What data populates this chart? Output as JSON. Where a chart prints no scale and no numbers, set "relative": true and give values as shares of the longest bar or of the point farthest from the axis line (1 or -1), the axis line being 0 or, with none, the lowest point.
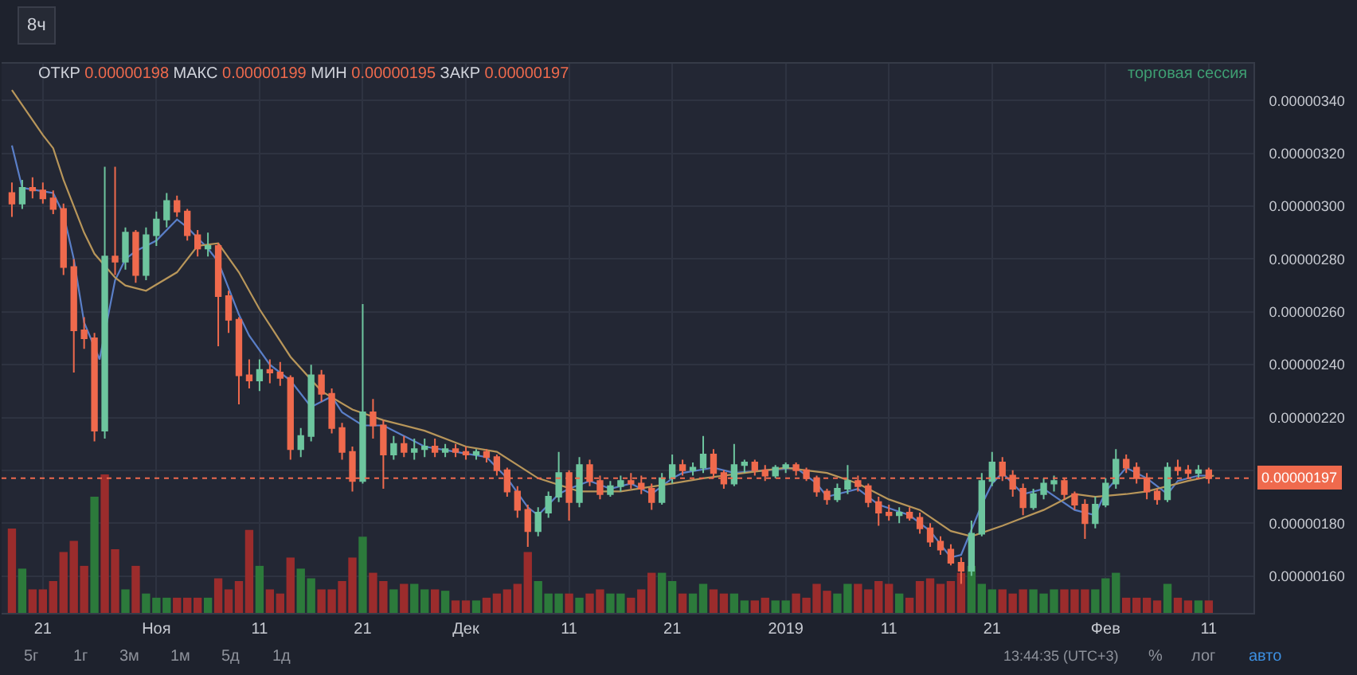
{
  "chart_data": [
    {
      "type": "candlestick",
      "x": [
        "2018-10-18",
        "2018-10-19",
        "2018-10-20",
        "2018-10-21",
        "2018-10-22",
        "2018-10-23",
        "2018-10-24",
        "2018-10-25",
        "2018-10-26",
        "2018-10-27",
        "2018-10-28",
        "2018-10-29",
        "2018-10-30",
        "2018-10-31",
        "2018-11-01",
        "2018-11-02",
        "2018-11-03",
        "2018-11-04",
        "2018-11-05",
        "2018-11-06",
        "2018-11-07",
        "2018-11-08",
        "2018-11-09",
        "2018-11-10",
        "2018-11-11",
        "2018-11-12",
        "2018-11-13",
        "2018-11-14",
        "2018-11-15",
        "2018-11-16",
        "2018-11-17",
        "2018-11-18",
        "2018-11-19",
        "2018-11-20",
        "2018-11-21",
        "2018-11-22",
        "2018-11-23",
        "2018-11-24",
        "2018-11-25",
        "2018-11-26",
        "2018-11-27",
        "2018-11-28",
        "2018-11-29",
        "2018-11-30",
        "2018-12-01",
        "2018-12-02",
        "2018-12-03",
        "2018-12-04",
        "2018-12-05",
        "2018-12-06",
        "2018-12-07",
        "2018-12-08",
        "2018-12-09",
        "2018-12-10",
        "2018-12-11",
        "2018-12-12",
        "2018-12-13",
        "2018-12-14",
        "2018-12-15",
        "2018-12-16",
        "2018-12-17",
        "2018-12-18",
        "2018-12-19",
        "2018-12-20",
        "2018-12-21",
        "2018-12-22",
        "2018-12-23",
        "2018-12-24",
        "2018-12-25",
        "2018-12-26",
        "2018-12-27",
        "2018-12-28",
        "2018-12-29",
        "2018-12-30",
        "2018-12-31",
        "2019-01-01",
        "2019-01-02",
        "2019-01-03",
        "2019-01-04",
        "2019-01-05",
        "2019-01-06",
        "2019-01-07",
        "2019-01-08",
        "2019-01-09",
        "2019-01-10",
        "2019-01-11",
        "2019-01-12",
        "2019-01-13",
        "2019-01-14",
        "2019-01-15",
        "2019-01-16",
        "2019-01-17",
        "2019-01-18",
        "2019-01-19",
        "2019-01-20",
        "2019-01-21",
        "2019-01-22",
        "2019-01-23",
        "2019-01-24",
        "2019-01-25",
        "2019-01-26",
        "2019-01-27",
        "2019-01-28",
        "2019-01-29",
        "2019-01-30",
        "2019-01-31",
        "2019-02-01",
        "2019-02-02",
        "2019-02-03",
        "2019-02-04",
        "2019-02-05",
        "2019-02-06",
        "2019-02-07",
        "2019-02-08",
        "2019-02-09",
        "2019-02-10",
        "2019-02-11"
      ],
      "ohlc": [
        [
          3.05e-06,
          3.09e-06,
          2.96e-06,
          3.01e-06
        ],
        [
          3.01e-06,
          3.1e-06,
          2.99e-06,
          3.07e-06
        ],
        [
          3.07e-06,
          3.11e-06,
          3.03e-06,
          3.06e-06
        ],
        [
          3.06e-06,
          3.09e-06,
          3.01e-06,
          3.03e-06
        ],
        [
          3.03e-06,
          3.06e-06,
          2.97e-06,
          2.99e-06
        ],
        [
          2.99e-06,
          3.01e-06,
          2.74e-06,
          2.77e-06
        ],
        [
          2.77e-06,
          2.8e-06,
          2.37e-06,
          2.53e-06
        ],
        [
          2.53e-06,
          2.58e-06,
          2.46e-06,
          2.5e-06
        ],
        [
          2.5e-06,
          2.52e-06,
          2.11e-06,
          2.15e-06
        ],
        [
          2.15e-06,
          3.15e-06,
          2.12e-06,
          2.81e-06
        ],
        [
          2.81e-06,
          3.15e-06,
          2.74e-06,
          2.79e-06
        ],
        [
          2.79e-06,
          2.92e-06,
          2.76e-06,
          2.9e-06
        ],
        [
          2.9e-06,
          2.91e-06,
          2.71e-06,
          2.74e-06
        ],
        [
          2.74e-06,
          2.92e-06,
          2.72e-06,
          2.89e-06
        ],
        [
          2.89e-06,
          2.98e-06,
          2.85e-06,
          2.95e-06
        ],
        [
          2.95e-06,
          3.05e-06,
          2.92e-06,
          3.02e-06
        ],
        [
          3.02e-06,
          3.04e-06,
          2.96e-06,
          2.98e-06
        ],
        [
          2.98e-06,
          2.99e-06,
          2.87e-06,
          2.89e-06
        ],
        [
          2.89e-06,
          2.91e-06,
          2.81e-06,
          2.84e-06
        ],
        [
          2.84e-06,
          2.9e-06,
          2.81e-06,
          2.85e-06
        ],
        [
          2.85e-06,
          2.86e-06,
          2.47e-06,
          2.66e-06
        ],
        [
          2.66e-06,
          2.68e-06,
          2.52e-06,
          2.57e-06
        ],
        [
          2.57e-06,
          2.58e-06,
          2.25e-06,
          2.36e-06
        ],
        [
          2.36e-06,
          2.42e-06,
          2.31e-06,
          2.34e-06
        ],
        [
          2.34e-06,
          2.42e-06,
          2.3e-06,
          2.38e-06
        ],
        [
          2.38e-06,
          2.42e-06,
          2.33e-06,
          2.37e-06
        ],
        [
          2.37e-06,
          2.41e-06,
          2.32e-06,
          2.35e-06
        ],
        [
          2.35e-06,
          2.36e-06,
          2.04e-06,
          2.08e-06
        ],
        [
          2.08e-06,
          2.16e-06,
          2.05e-06,
          2.13e-06
        ],
        [
          2.13e-06,
          2.4e-06,
          2.11e-06,
          2.36e-06
        ],
        [
          2.36e-06,
          2.38e-06,
          2.26e-06,
          2.29e-06
        ],
        [
          2.29e-06,
          2.31e-06,
          2.14e-06,
          2.16e-06
        ],
        [
          2.16e-06,
          2.18e-06,
          2.04e-06,
          2.07e-06
        ],
        [
          2.07e-06,
          2.09e-06,
          1.92e-06,
          1.96e-06
        ],
        [
          1.96e-06,
          2.63e-06,
          1.95e-06,
          2.22e-06
        ],
        [
          2.22e-06,
          2.27e-06,
          2.12e-06,
          2.17e-06
        ],
        [
          2.17e-06,
          2.19e-06,
          1.93e-06,
          2.06e-06
        ],
        [
          2.06e-06,
          2.13e-06,
          2.04e-06,
          2.1e-06
        ],
        [
          2.1e-06,
          2.13e-06,
          2.05e-06,
          2.07e-06
        ],
        [
          2.07e-06,
          2.12e-06,
          2.04e-06,
          2.08e-06
        ],
        [
          2.08e-06,
          2.12e-06,
          2.05e-06,
          2.09e-06
        ],
        [
          2.09e-06,
          2.12e-06,
          2.05e-06,
          2.07e-06
        ],
        [
          2.07e-06,
          2.1e-06,
          2.05e-06,
          2.08e-06
        ],
        [
          2.08e-06,
          2.1e-06,
          2.05e-06,
          2.07e-06
        ],
        [
          2.07e-06,
          2.09e-06,
          2.04e-06,
          2.06e-06
        ],
        [
          2.06e-06,
          2.08e-06,
          2.04e-06,
          2.07e-06
        ],
        [
          2.07e-06,
          2.08e-06,
          2.03e-06,
          2.05e-06
        ],
        [
          2.05e-06,
          2.06e-06,
          1.98e-06,
          2e-06
        ],
        [
          2e-06,
          2.01e-06,
          1.9e-06,
          1.92e-06
        ],
        [
          1.92e-06,
          1.94e-06,
          1.82e-06,
          1.85e-06
        ],
        [
          1.85e-06,
          1.87e-06,
          1.71e-06,
          1.77e-06
        ],
        [
          1.77e-06,
          1.86e-06,
          1.75e-06,
          1.84e-06
        ],
        [
          1.84e-06,
          1.92e-06,
          1.82e-06,
          1.9e-06
        ],
        [
          1.9e-06,
          2.07e-06,
          1.88e-06,
          1.99e-06
        ],
        [
          1.99e-06,
          2e-06,
          1.81e-06,
          1.88e-06
        ],
        [
          1.88e-06,
          2.05e-06,
          1.86e-06,
          2.02e-06
        ],
        [
          2.02e-06,
          2.04e-06,
          1.94e-06,
          1.96e-06
        ],
        [
          1.96e-06,
          1.98e-06,
          1.89e-06,
          1.91e-06
        ],
        [
          1.91e-06,
          1.96e-06,
          1.9e-06,
          1.94e-06
        ],
        [
          1.94e-06,
          1.98e-06,
          1.92e-06,
          1.96e-06
        ],
        [
          1.96e-06,
          1.99e-06,
          1.93e-06,
          1.95e-06
        ],
        [
          1.95e-06,
          1.98e-06,
          1.91e-06,
          1.93e-06
        ],
        [
          1.93e-06,
          1.95e-06,
          1.85e-06,
          1.88e-06
        ],
        [
          1.88e-06,
          1.99e-06,
          1.87e-06,
          1.97e-06
        ],
        [
          1.97e-06,
          2.06e-06,
          1.95e-06,
          2.02e-06
        ],
        [
          2.02e-06,
          2.04e-06,
          1.98e-06,
          2e-06
        ],
        [
          2e-06,
          2.03e-06,
          1.98e-06,
          2.01e-06
        ],
        [
          2.01e-06,
          2.13e-06,
          1.99e-06,
          2.06e-06
        ],
        [
          2.06e-06,
          2.08e-06,
          1.97e-06,
          1.99e-06
        ],
        [
          1.99e-06,
          2e-06,
          1.93e-06,
          1.95e-06
        ],
        [
          1.95e-06,
          2.1e-06,
          1.94e-06,
          2.02e-06
        ],
        [
          2.02e-06,
          2.04e-06,
          1.99e-06,
          2.03e-06
        ],
        [
          2.03e-06,
          2.04e-06,
          1.98e-06,
          2e-06
        ],
        [
          2e-06,
          2.02e-06,
          1.96e-06,
          1.98e-06
        ],
        [
          1.98e-06,
          2.02e-06,
          1.97e-06,
          2.01e-06
        ],
        [
          2.01e-06,
          2.03e-06,
          1.99e-06,
          2.02e-06
        ],
        [
          2.02e-06,
          2.03e-06,
          1.98e-06,
          2e-06
        ],
        [
          2e-06,
          2.01e-06,
          1.96e-06,
          1.97e-06
        ],
        [
          1.97e-06,
          1.98e-06,
          1.9e-06,
          1.92e-06
        ],
        [
          1.92e-06,
          1.93e-06,
          1.87e-06,
          1.89e-06
        ],
        [
          1.89e-06,
          1.95e-06,
          1.88e-06,
          1.93e-06
        ],
        [
          1.93e-06,
          2.02e-06,
          1.91e-06,
          1.96e-06
        ],
        [
          1.96e-06,
          1.98e-06,
          1.92e-06,
          1.94e-06
        ],
        [
          1.94e-06,
          1.95e-06,
          1.86e-06,
          1.88e-06
        ],
        [
          1.88e-06,
          1.9e-06,
          1.79e-06,
          1.84e-06
        ],
        [
          1.84e-06,
          1.87e-06,
          1.81e-06,
          1.83e-06
        ],
        [
          1.83e-06,
          1.86e-06,
          1.8e-06,
          1.84e-06
        ],
        [
          1.84e-06,
          1.86e-06,
          1.81e-06,
          1.82e-06
        ],
        [
          1.82e-06,
          1.84e-06,
          1.76e-06,
          1.78e-06
        ],
        [
          1.78e-06,
          1.8e-06,
          1.71e-06,
          1.73e-06
        ],
        [
          1.73e-06,
          1.75e-06,
          1.68e-06,
          1.7e-06
        ],
        [
          1.7e-06,
          1.72e-06,
          1.64e-06,
          1.65e-06
        ],
        [
          1.65e-06,
          1.67e-06,
          1.57e-06,
          1.62e-06
        ],
        [
          1.62e-06,
          1.81e-06,
          1.6e-06,
          1.76e-06
        ],
        [
          1.76e-06,
          1.99e-06,
          1.75e-06,
          1.96e-06
        ],
        [
          1.96e-06,
          2.07e-06,
          1.94e-06,
          2.03e-06
        ],
        [
          2.03e-06,
          2.05e-06,
          1.96e-06,
          1.98e-06
        ],
        [
          1.98e-06,
          2e-06,
          1.9e-06,
          1.93e-06
        ],
        [
          1.93e-06,
          1.95e-06,
          1.83e-06,
          1.86e-06
        ],
        [
          1.86e-06,
          1.93e-06,
          1.85e-06,
          1.91e-06
        ],
        [
          1.91e-06,
          1.97e-06,
          1.89e-06,
          1.95e-06
        ],
        [
          1.95e-06,
          1.98e-06,
          1.92e-06,
          1.96e-06
        ],
        [
          1.96e-06,
          1.97e-06,
          1.89e-06,
          1.91e-06
        ],
        [
          1.91e-06,
          1.92e-06,
          1.85e-06,
          1.87e-06
        ],
        [
          1.87e-06,
          1.89e-06,
          1.74e-06,
          1.8e-06
        ],
        [
          1.8e-06,
          1.9e-06,
          1.78e-06,
          1.87e-06
        ],
        [
          1.87e-06,
          1.97e-06,
          1.86e-06,
          1.95e-06
        ],
        [
          1.95e-06,
          2.08e-06,
          1.93e-06,
          2.04e-06
        ],
        [
          2.04e-06,
          2.06e-06,
          1.99e-06,
          2.01e-06
        ],
        [
          2.01e-06,
          2.03e-06,
          1.95e-06,
          1.97e-06
        ],
        [
          1.97e-06,
          1.99e-06,
          1.89e-06,
          1.92e-06
        ],
        [
          1.92e-06,
          1.93e-06,
          1.87e-06,
          1.89e-06
        ],
        [
          1.89e-06,
          2.03e-06,
          1.88e-06,
          2.01e-06
        ],
        [
          2.01e-06,
          2.04e-06,
          1.98e-06,
          2e-06
        ],
        [
          2e-06,
          2.02e-06,
          1.97e-06,
          1.99e-06
        ],
        [
          1.99e-06,
          2.02e-06,
          1.97e-06,
          2e-06
        ],
        [
          2e-06,
          2.01e-06,
          1.95e-06,
          1.97e-06
        ]
      ],
      "colors": [
        "#ef6a4d",
        "#6dc59e",
        "#ef6a4d",
        "#ef6a4d",
        "#ef6a4d",
        "#ef6a4d",
        "#ef6a4d",
        "#ef6a4d",
        "#ef6a4d",
        "#6dc59e",
        "#ef6a4d",
        "#6dc59e",
        "#ef6a4d",
        "#6dc59e",
        "#6dc59e",
        "#6dc59e",
        "#ef6a4d",
        "#ef6a4d",
        "#ef6a4d",
        "#6dc59e",
        "#ef6a4d",
        "#ef6a4d",
        "#ef6a4d",
        "#ef6a4d",
        "#6dc59e",
        "#ef6a4d",
        "#ef6a4d",
        "#ef6a4d",
        "#6dc59e",
        "#6dc59e",
        "#ef6a4d",
        "#ef6a4d",
        "#ef6a4d",
        "#ef6a4d",
        "#6dc59e",
        "#ef6a4d",
        "#ef6a4d",
        "#6dc59e",
        "#ef6a4d",
        "#6dc59e",
        "#6dc59e",
        "#ef6a4d",
        "#6dc59e",
        "#ef6a4d",
        "#ef6a4d",
        "#6dc59e",
        "#ef6a4d",
        "#ef6a4d",
        "#ef6a4d",
        "#ef6a4d",
        "#ef6a4d",
        "#6dc59e",
        "#6dc59e",
        "#6dc59e",
        "#ef6a4d",
        "#6dc59e",
        "#ef6a4d",
        "#ef6a4d",
        "#6dc59e",
        "#6dc59e",
        "#ef6a4d",
        "#ef6a4d",
        "#ef6a4d",
        "#6dc59e",
        "#6dc59e",
        "#ef6a4d",
        "#6dc59e",
        "#6dc59e",
        "#ef6a4d",
        "#ef6a4d",
        "#6dc59e",
        "#6dc59e",
        "#ef6a4d",
        "#ef6a4d",
        "#6dc59e",
        "#6dc59e",
        "#ef6a4d",
        "#ef6a4d",
        "#ef6a4d",
        "#ef6a4d",
        "#6dc59e",
        "#6dc59e",
        "#ef6a4d",
        "#ef6a4d",
        "#ef6a4d",
        "#ef6a4d",
        "#6dc59e",
        "#ef6a4d",
        "#ef6a4d",
        "#ef6a4d",
        "#ef6a4d",
        "#ef6a4d",
        "#ef6a4d",
        "#6dc59e",
        "#6dc59e",
        "#6dc59e",
        "#ef6a4d",
        "#ef6a4d",
        "#ef6a4d",
        "#6dc59e",
        "#6dc59e",
        "#6dc59e",
        "#ef6a4d",
        "#ef6a4d",
        "#ef6a4d",
        "#6dc59e",
        "#6dc59e",
        "#6dc59e",
        "#ef6a4d",
        "#ef6a4d",
        "#ef6a4d",
        "#ef6a4d",
        "#6dc59e",
        "#ef6a4d",
        "#ef6a4d",
        "#6dc59e",
        "#ef6a4d"
      ],
      "series": [
        {
          "type": "line",
          "color": "#5a7fc8",
          "x": [
            "2018-10-18",
            "2018-10-19",
            "2018-10-22",
            "2018-10-23",
            "2018-10-24",
            "2018-10-25",
            "2018-10-26T12:00",
            "2018-10-28",
            "2018-10-29",
            "2018-10-30",
            "2018-11-01",
            "2018-11-03",
            "2018-11-04",
            "2018-11-06",
            "2018-11-07",
            "2018-11-09",
            "2018-11-10",
            "2018-11-12",
            "2018-11-14",
            "2018-11-16",
            "2018-11-18",
            "2018-11-19",
            "2018-11-21",
            "2018-11-23",
            "2018-11-25",
            "2018-11-27",
            "2018-11-30",
            "2018-12-03",
            "2018-12-05",
            "2018-12-07",
            "2018-12-08",
            "2018-12-10",
            "2018-12-11",
            "2018-12-13",
            "2018-12-15",
            "2018-12-17",
            "2018-12-19",
            "2018-12-21",
            "2018-12-22",
            "2018-12-25",
            "2018-12-27",
            "2018-12-30",
            "2019-01-02",
            "2019-01-04",
            "2019-01-05",
            "2019-01-08",
            "2019-01-10",
            "2019-01-13",
            "2019-01-15",
            "2019-01-17",
            "2019-01-18",
            "2019-01-20",
            "2019-01-21",
            "2019-01-22",
            "2019-01-24",
            "2019-01-26",
            "2019-01-29",
            "2019-01-31",
            "2019-02-01",
            "2019-02-03",
            "2019-02-05",
            "2019-02-07",
            "2019-02-08",
            "2019-02-10",
            "2019-02-11"
          ],
          "values": [
            3.23e-06,
            3.07e-06,
            3.05e-06,
            2.97e-06,
            2.8e-06,
            2.56e-06,
            2.42e-06,
            2.72e-06,
            2.8e-06,
            2.83e-06,
            2.87e-06,
            2.95e-06,
            2.92e-06,
            2.84e-06,
            2.79e-06,
            2.59e-06,
            2.51e-06,
            2.4e-06,
            2.34e-06,
            2.24e-06,
            2.28e-06,
            2.22e-06,
            2.17e-06,
            2.17e-06,
            2.13e-06,
            2.09e-06,
            2.07e-06,
            2.05e-06,
            1.97e-06,
            1.86e-06,
            1.83e-06,
            1.91e-06,
            1.93e-06,
            1.96e-06,
            1.93e-06,
            1.95e-06,
            1.91e-06,
            1.97e-06,
            1.99e-06,
            2.01e-06,
            1.99e-06,
            2e-06,
            2.01e-06,
            1.95e-06,
            1.9e-06,
            1.93e-06,
            1.87e-06,
            1.83e-06,
            1.77e-06,
            1.67e-06,
            1.68e-06,
            1.87e-06,
            1.95e-06,
            1.99e-06,
            1.91e-06,
            1.93e-06,
            1.85e-06,
            1.83e-06,
            1.92e-06,
            2.01e-06,
            1.97e-06,
            1.91e-06,
            1.96e-06,
            1.98e-06,
            1.98e-06
          ]
        },
        {
          "type": "line",
          "color": "#b8965a",
          "x": [
            "2018-10-18",
            "2018-10-21",
            "2018-10-22",
            "2018-10-23",
            "2018-10-24",
            "2018-10-25",
            "2018-10-26",
            "2018-10-28",
            "2018-10-29",
            "2018-10-31",
            "2018-11-03",
            "2018-11-05",
            "2018-11-07",
            "2018-11-09",
            "2018-11-11",
            "2018-11-14",
            "2018-11-17",
            "2018-11-20",
            "2018-11-23",
            "2018-11-27",
            "2018-12-01",
            "2018-12-04",
            "2018-12-08",
            "2018-12-12",
            "2018-12-16",
            "2018-12-21",
            "2018-12-24",
            "2018-12-28",
            "2019-01-01",
            "2019-01-05",
            "2019-01-08",
            "2019-01-11",
            "2019-01-14",
            "2019-01-17",
            "2019-01-19",
            "2019-01-22",
            "2019-01-26",
            "2019-01-29",
            "2019-01-31",
            "2019-02-03",
            "2019-02-05",
            "2019-02-09",
            "2019-02-11T12:00"
          ],
          "values": [
            3.44e-06,
            3.27e-06,
            3.22e-06,
            3.1e-06,
            3e-06,
            2.9e-06,
            2.82e-06,
            2.73e-06,
            2.7e-06,
            2.68e-06,
            2.75e-06,
            2.85e-06,
            2.86e-06,
            2.75e-06,
            2.61e-06,
            2.43e-06,
            2.3e-06,
            2.23e-06,
            2.19e-06,
            2.15e-06,
            2.09e-06,
            2.07e-06,
            1.97e-06,
            1.92e-06,
            1.92e-06,
            1.95e-06,
            1.97e-06,
            1.99e-06,
            2.01e-06,
            1.99e-06,
            1.95e-06,
            1.89e-06,
            1.85e-06,
            1.77e-06,
            1.75e-06,
            1.79e-06,
            1.85e-06,
            1.91e-06,
            1.9e-06,
            1.91e-06,
            1.92e-06,
            1.96e-06,
            1.98e-06
          ]
        }
      ],
      "xlim": [
        "2018-10-17",
        "2019-02-15T08:00"
      ],
      "xticks": [
        {
          "value": "2018-10-21",
          "label": "21"
        },
        {
          "value": "2018-11-01",
          "label": "Ноя"
        },
        {
          "value": "2018-11-11",
          "label": "11"
        },
        {
          "value": "2018-11-21",
          "label": "21"
        },
        {
          "value": "2018-12-01",
          "label": "Дек"
        },
        {
          "value": "2018-12-11",
          "label": "11"
        },
        {
          "value": "2018-12-21",
          "label": "21"
        },
        {
          "value": "2019-01-01",
          "label": "2019"
        },
        {
          "value": "2019-01-11",
          "label": "11"
        },
        {
          "value": "2019-01-21",
          "label": "21"
        },
        {
          "value": "2019-02-01",
          "label": "Фев"
        },
        {
          "value": "2019-02-11",
          "label": "11"
        }
      ],
      "ylim": [
        1.46e-06,
        3.54e-06
      ],
      "yticks": [
        {
          "value": 1.6e-06,
          "label": "0.00000160"
        },
        {
          "value": 1.8e-06,
          "label": "0.00000180"
        },
        {
          "value": 2e-06,
          "label": null
        },
        {
          "value": 2.2e-06,
          "label": "0.00000220"
        },
        {
          "value": 2.4e-06,
          "label": "0.00000240"
        },
        {
          "value": 2.6e-06,
          "label": "0.00000260"
        },
        {
          "value": 2.8e-06,
          "label": "0.00000280"
        },
        {
          "value": 3e-06,
          "label": "0.00000300"
        },
        {
          "value": 3.2e-06,
          "label": "0.00000320"
        },
        {
          "value": 3.4e-06,
          "label": "0.00000340"
        }
      ],
      "grid": true,
      "ref_lines": [
        {
          "axis": "y",
          "value": 1.97e-06,
          "label": "0.00000197",
          "color": "#ef6a4d",
          "line_style": "dotted"
        }
      ],
      "annotations": [
        "ОТКР 0.00000198 МАКС 0.00000199 МИН 0.00000195 ЗАКР 0.00000197",
        "торговая сессия",
        "8ч",
        "5г",
        "1г",
        "3м",
        "1м",
        "5д",
        "1д",
        "13:44:35 (UTC+3)",
        "%",
        "лог",
        "авто"
      ]
    },
    {
      "type": "bar",
      "relative": true,
      "tick_labels": false,
      "x": [
        "2018-10-18",
        "2018-10-19",
        "2018-10-20",
        "2018-10-21",
        "2018-10-22",
        "2018-10-23",
        "2018-10-24",
        "2018-10-25",
        "2018-10-26",
        "2018-10-27",
        "2018-10-28",
        "2018-10-29",
        "2018-10-30",
        "2018-10-31",
        "2018-11-01",
        "2018-11-02",
        "2018-11-03",
        "2018-11-04",
        "2018-11-05",
        "2018-11-06",
        "2018-11-07",
        "2018-11-08",
        "2018-11-09",
        "2018-11-10",
        "2018-11-11",
        "2018-11-12",
        "2018-11-13",
        "2018-11-14",
        "2018-11-15",
        "2018-11-16",
        "2018-11-17",
        "2018-11-18",
        "2018-11-19",
        "2018-11-20",
        "2018-11-21",
        "2018-11-22",
        "2018-11-23",
        "2018-11-24",
        "2018-11-25",
        "2018-11-26",
        "2018-11-27",
        "2018-11-28",
        "2018-11-29",
        "2018-11-30",
        "2018-12-01",
        "2018-12-02",
        "2018-12-03",
        "2018-12-04",
        "2018-12-05",
        "2018-12-06",
        "2018-12-07",
        "2018-12-08",
        "2018-12-09",
        "2018-12-10",
        "2018-12-11",
        "2018-12-12",
        "2018-12-13",
        "2018-12-14",
        "2018-12-15",
        "2018-12-16",
        "2018-12-17",
        "2018-12-18",
        "2018-12-19",
        "2018-12-20",
        "2018-12-21",
        "2018-12-22",
        "2018-12-23",
        "2018-12-24",
        "2018-12-25",
        "2018-12-26",
        "2018-12-27",
        "2018-12-28",
        "2018-12-29",
        "2018-12-30",
        "2018-12-31",
        "2019-01-01",
        "2019-01-02",
        "2019-01-03",
        "2019-01-04",
        "2019-01-05",
        "2019-01-06",
        "2019-01-07",
        "2019-01-08",
        "2019-01-09",
        "2019-01-10",
        "2019-01-11",
        "2019-01-12",
        "2019-01-13",
        "2019-01-14",
        "2019-01-15",
        "2019-01-16",
        "2019-01-17",
        "2019-01-18",
        "2019-01-19",
        "2019-01-20",
        "2019-01-21",
        "2019-01-22",
        "2019-01-23",
        "2019-01-24",
        "2019-01-25",
        "2019-01-26",
        "2019-01-27",
        "2019-01-28",
        "2019-01-29",
        "2019-01-30",
        "2019-01-31",
        "2019-02-01",
        "2019-02-02",
        "2019-02-03",
        "2019-02-04",
        "2019-02-05",
        "2019-02-06",
        "2019-02-07",
        "2019-02-08",
        "2019-02-09",
        "2019-02-10",
        "2019-02-11"
      ],
      "xlim": [
        "2018-10-17",
        "2019-02-15T08:00"
      ],
      "values": [
        0.61,
        0.32,
        0.17,
        0.17,
        0.23,
        0.44,
        0.52,
        0.34,
        0.84,
        1,
        0.46,
        0.17,
        0.34,
        0.14,
        0.11,
        0.11,
        0.11,
        0.11,
        0.11,
        0.11,
        0.25,
        0.17,
        0.23,
        0.6,
        0.34,
        0.17,
        0.14,
        0.4,
        0.32,
        0.25,
        0.17,
        0.17,
        0.23,
        0.4,
        0.55,
        0.29,
        0.23,
        0.17,
        0.21,
        0.21,
        0.17,
        0.17,
        0.16,
        0.09,
        0.09,
        0.09,
        0.11,
        0.14,
        0.17,
        0.21,
        0.44,
        0.23,
        0.14,
        0.14,
        0.14,
        0.11,
        0.14,
        0.17,
        0.14,
        0.14,
        0.11,
        0.17,
        0.29,
        0.29,
        0.23,
        0.14,
        0.14,
        0.21,
        0.17,
        0.14,
        0.14,
        0.09,
        0.09,
        0.11,
        0.09,
        0.09,
        0.14,
        0.11,
        0.21,
        0.16,
        0.14,
        0.21,
        0.21,
        0.17,
        0.23,
        0.21,
        0.14,
        0.11,
        0.23,
        0.25,
        0.21,
        0.23,
        0.29,
        0.34,
        0.21,
        0.17,
        0.17,
        0.14,
        0.17,
        0.17,
        0.14,
        0.17,
        0.17,
        0.17,
        0.17,
        0.17,
        0.25,
        0.29,
        0.11,
        0.11,
        0.11,
        0.09,
        0.21,
        0.11,
        0.09,
        0.09,
        0.09
      ],
      "colors": [
        "#9b2c2c",
        "#2c7a3b",
        "#9b2c2c",
        "#9b2c2c",
        "#9b2c2c",
        "#9b2c2c",
        "#9b2c2c",
        "#9b2c2c",
        "#2c7a3b",
        "#9b2c2c",
        "#9b2c2c",
        "#2c7a3b",
        "#9b2c2c",
        "#2c7a3b",
        "#2c7a3b",
        "#2c7a3b",
        "#9b2c2c",
        "#9b2c2c",
        "#9b2c2c",
        "#2c7a3b",
        "#9b2c2c",
        "#9b2c2c",
        "#9b2c2c",
        "#9b2c2c",
        "#2c7a3b",
        "#9b2c2c",
        "#9b2c2c",
        "#9b2c2c",
        "#2c7a3b",
        "#2c7a3b",
        "#9b2c2c",
        "#9b2c2c",
        "#9b2c2c",
        "#9b2c2c",
        "#2c7a3b",
        "#9b2c2c",
        "#9b2c2c",
        "#2c7a3b",
        "#9b2c2c",
        "#2c7a3b",
        "#2c7a3b",
        "#9b2c2c",
        "#2c7a3b",
        "#9b2c2c",
        "#9b2c2c",
        "#2c7a3b",
        "#9b2c2c",
        "#9b2c2c",
        "#9b2c2c",
        "#9b2c2c",
        "#9b2c2c",
        "#2c7a3b",
        "#2c7a3b",
        "#2c7a3b",
        "#9b2c2c",
        "#2c7a3b",
        "#9b2c2c",
        "#9b2c2c",
        "#2c7a3b",
        "#2c7a3b",
        "#9b2c2c",
        "#9b2c2c",
        "#9b2c2c",
        "#2c7a3b",
        "#2c7a3b",
        "#9b2c2c",
        "#2c7a3b",
        "#2c7a3b",
        "#9b2c2c",
        "#9b2c2c",
        "#2c7a3b",
        "#2c7a3b",
        "#9b2c2c",
        "#9b2c2c",
        "#2c7a3b",
        "#2c7a3b",
        "#9b2c2c",
        "#9b2c2c",
        "#9b2c2c",
        "#9b2c2c",
        "#2c7a3b",
        "#2c7a3b",
        "#9b2c2c",
        "#9b2c2c",
        "#9b2c2c",
        "#9b2c2c",
        "#2c7a3b",
        "#9b2c2c",
        "#9b2c2c",
        "#9b2c2c",
        "#9b2c2c",
        "#9b2c2c",
        "#9b2c2c",
        "#2c7a3b",
        "#2c7a3b",
        "#2c7a3b",
        "#9b2c2c",
        "#9b2c2c",
        "#9b2c2c",
        "#2c7a3b",
        "#2c7a3b",
        "#2c7a3b",
        "#9b2c2c",
        "#9b2c2c",
        "#9b2c2c",
        "#2c7a3b",
        "#2c7a3b",
        "#2c7a3b",
        "#9b2c2c",
        "#9b2c2c",
        "#9b2c2c",
        "#9b2c2c",
        "#2c7a3b",
        "#9b2c2c",
        "#9b2c2c",
        "#2c7a3b",
        "#9b2c2c"
      ]
    }
  ]
}
